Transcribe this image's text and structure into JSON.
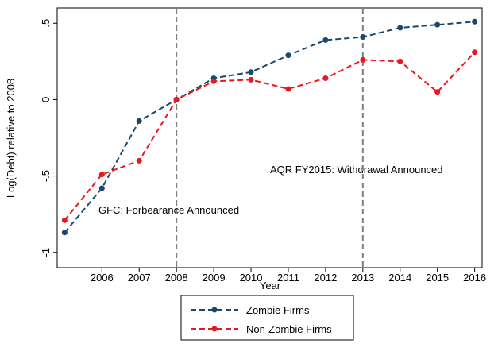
{
  "chart_data": {
    "type": "line",
    "x_label": "Year",
    "y_label": "Log(Debt) relative to 2008",
    "x": [
      2005,
      2006,
      2007,
      2008,
      2009,
      2010,
      2011,
      2012,
      2013,
      2014,
      2015,
      2016
    ],
    "series": [
      {
        "name": "Zombie Firms",
        "color": "#1a476f",
        "values": [
          -0.87,
          -0.58,
          -0.14,
          0,
          0.14,
          0.18,
          0.29,
          0.39,
          0.41,
          0.47,
          0.49,
          0.51
        ]
      },
      {
        "name": "Non-Zombie Firms",
        "color": "#e8191e",
        "values": [
          -0.79,
          -0.49,
          -0.4,
          0,
          0.12,
          0.13,
          0.07,
          0.14,
          0.26,
          0.25,
          0.05,
          0.31
        ]
      }
    ],
    "xlim": [
      2004.8,
      2016.2
    ],
    "ylim": [
      -1.1,
      0.6
    ],
    "xticks": [
      2006,
      2007,
      2008,
      2009,
      2010,
      2011,
      2012,
      2013,
      2014,
      2015,
      2016
    ],
    "yticks": [
      {
        "value": -1,
        "label": "-1"
      },
      {
        "value": -0.5,
        "label": "-.5"
      },
      0,
      {
        "value": 0.5,
        "label": ".5"
      }
    ],
    "vlines": [
      2008,
      2013
    ],
    "annotations": [
      "GFC: Forbearance Announced",
      "AQR FY2015: Withdrawal Announced"
    ],
    "legend": "bottom"
  }
}
